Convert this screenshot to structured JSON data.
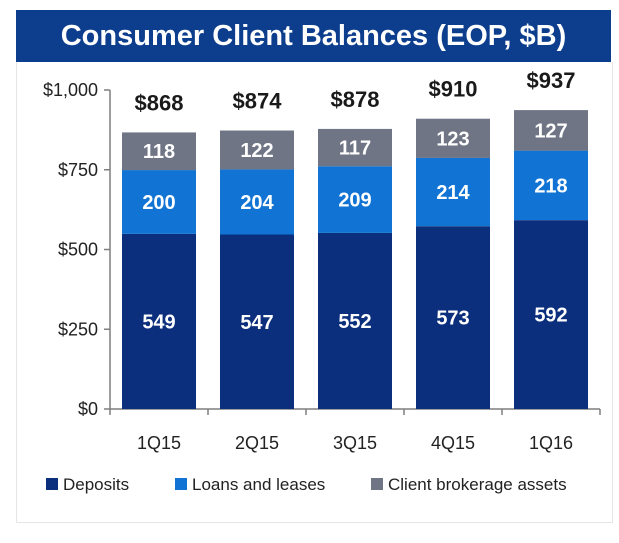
{
  "chart_data": {
    "type": "bar",
    "stacked": true,
    "title": "Consumer Client Balances (EOP, $B)",
    "categories": [
      "1Q15",
      "2Q15",
      "3Q15",
      "4Q15",
      "1Q16"
    ],
    "series": [
      {
        "name": "Deposits",
        "values": [
          549,
          547,
          552,
          573,
          592
        ],
        "color": "#0b2f7c"
      },
      {
        "name": "Loans and leases",
        "values": [
          200,
          204,
          209,
          214,
          218
        ],
        "color": "#1174d4"
      },
      {
        "name": "Client brokerage assets",
        "values": [
          118,
          122,
          117,
          123,
          127
        ],
        "color": "#6f7585"
      }
    ],
    "totals": [
      "$868",
      "$874",
      "$878",
      "$910",
      "$937"
    ],
    "yticks": [
      "$0",
      "$250",
      "$500",
      "$750",
      "$1,000"
    ],
    "ytick_values": [
      0,
      250,
      500,
      750,
      1000
    ],
    "ylim": [
      0,
      1000
    ],
    "legend_position": "bottom",
    "grid": false,
    "colors": {
      "title_background": "#0d3e8e",
      "title_text": "#ffffff"
    }
  }
}
